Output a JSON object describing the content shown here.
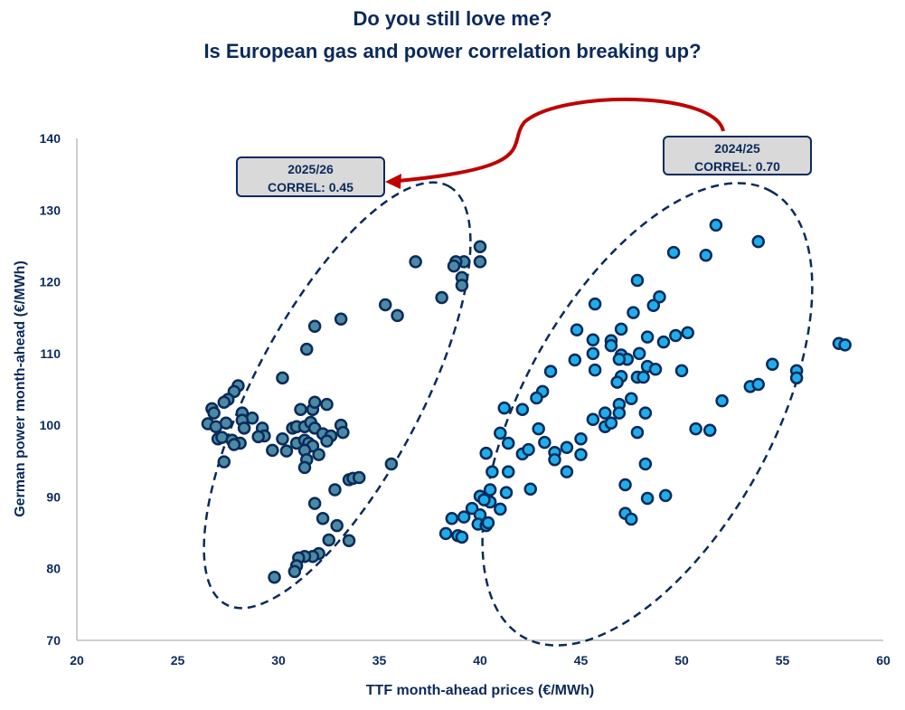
{
  "chart_data": {
    "type": "scatter",
    "title": "Do you still love me?",
    "subtitle": "Is European gas and power correlation breaking up?",
    "xlabel": "TTF month-ahead prices (€/MWh)",
    "ylabel": "German power month-ahead (€/MWh)",
    "xlim": [
      20,
      60
    ],
    "ylim": [
      70,
      140
    ],
    "xticks": [
      "20",
      "25",
      "30",
      "35",
      "40",
      "45",
      "50",
      "55",
      "60"
    ],
    "yticks": [
      "70",
      "80",
      "90",
      "100",
      "110",
      "120",
      "130",
      "140"
    ],
    "grid": false,
    "colors": {
      "series_2025_26": "#4a8ba3",
      "series_2024_25": "#1eaeea",
      "marker_edge": "#0b2a5b",
      "arrow": "#c00000",
      "text": "#0b2a5b"
    },
    "annotations": [
      {
        "line1": "2025/26",
        "line2": "CORREL: 0.45"
      },
      {
        "line1": "2024/25",
        "line2": "CORREL: 0.70"
      }
    ],
    "series": [
      {
        "points": [
          [
            40.0,
            124.9
          ],
          [
            40.0,
            122.8
          ],
          [
            39.2,
            122.8
          ],
          [
            38.8,
            122.8
          ],
          [
            38.7,
            122.2
          ],
          [
            36.8,
            122.8
          ],
          [
            39.1,
            120.6
          ],
          [
            39.1,
            119.5
          ],
          [
            38.1,
            117.8
          ],
          [
            35.3,
            116.8
          ],
          [
            35.9,
            115.3
          ],
          [
            33.1,
            114.8
          ],
          [
            31.8,
            113.8
          ],
          [
            31.4,
            110.6
          ],
          [
            30.2,
            106.6
          ],
          [
            28.0,
            105.5
          ],
          [
            27.8,
            104.7
          ],
          [
            27.5,
            103.6
          ],
          [
            27.3,
            103.2
          ],
          [
            26.7,
            102.3
          ],
          [
            26.8,
            101.7
          ],
          [
            26.5,
            100.2
          ],
          [
            26.9,
            99.8
          ],
          [
            27.4,
            100.3
          ],
          [
            28.2,
            101.7
          ],
          [
            28.7,
            101.0
          ],
          [
            28.2,
            100.7
          ],
          [
            28.3,
            99.6
          ],
          [
            29.2,
            99.6
          ],
          [
            29.3,
            98.5
          ],
          [
            29.0,
            98.4
          ],
          [
            27.0,
            98.1
          ],
          [
            27.2,
            98.3
          ],
          [
            27.7,
            97.9
          ],
          [
            28.1,
            97.5
          ],
          [
            27.8,
            97.3
          ],
          [
            27.3,
            94.9
          ],
          [
            29.7,
            96.5
          ],
          [
            30.2,
            98.1
          ],
          [
            30.4,
            96.4
          ],
          [
            31.1,
            102.2
          ],
          [
            31.7,
            102.2
          ],
          [
            31.8,
            103.2
          ],
          [
            32.4,
            102.9
          ],
          [
            30.7,
            99.6
          ],
          [
            30.9,
            99.8
          ],
          [
            31.3,
            99.8
          ],
          [
            31.6,
            100.4
          ],
          [
            31.8,
            99.6
          ],
          [
            32.2,
            98.8
          ],
          [
            32.6,
            98.5
          ],
          [
            30.9,
            97.5
          ],
          [
            31.3,
            97.9
          ],
          [
            31.5,
            97.5
          ],
          [
            31.7,
            97.1
          ],
          [
            32.4,
            97.8
          ],
          [
            31.3,
            96.5
          ],
          [
            32.0,
            95.9
          ],
          [
            31.4,
            95.2
          ],
          [
            31.3,
            94.1
          ],
          [
            33.1,
            100.0
          ],
          [
            33.2,
            99.0
          ],
          [
            35.6,
            94.6
          ],
          [
            33.5,
            92.4
          ],
          [
            33.7,
            92.6
          ],
          [
            34.0,
            92.7
          ],
          [
            32.8,
            91.0
          ],
          [
            31.8,
            89.1
          ],
          [
            32.2,
            87.0
          ],
          [
            32.9,
            86.0
          ],
          [
            32.5,
            84.0
          ],
          [
            33.5,
            83.9
          ],
          [
            32.0,
            82.1
          ],
          [
            31.7,
            81.7
          ],
          [
            31.3,
            81.7
          ],
          [
            31.0,
            81.5
          ],
          [
            30.9,
            80.4
          ],
          [
            30.8,
            79.6
          ],
          [
            29.8,
            78.8
          ]
        ]
      },
      {
        "points": [
          [
            51.7,
            127.9
          ],
          [
            53.8,
            125.6
          ],
          [
            49.6,
            124.1
          ],
          [
            51.2,
            123.7
          ],
          [
            47.8,
            120.2
          ],
          [
            48.9,
            117.9
          ],
          [
            48.6,
            116.7
          ],
          [
            45.7,
            116.9
          ],
          [
            47.6,
            115.7
          ],
          [
            44.8,
            113.3
          ],
          [
            47.0,
            113.4
          ],
          [
            45.6,
            111.9
          ],
          [
            46.5,
            111.8
          ],
          [
            46.5,
            111.1
          ],
          [
            48.3,
            112.3
          ],
          [
            49.1,
            111.6
          ],
          [
            49.7,
            112.5
          ],
          [
            50.3,
            112.9
          ],
          [
            57.8,
            111.4
          ],
          [
            58.1,
            111.2
          ],
          [
            45.6,
            110.0
          ],
          [
            44.7,
            109.1
          ],
          [
            47.0,
            109.8
          ],
          [
            47.3,
            109.2
          ],
          [
            46.9,
            109.2
          ],
          [
            47.9,
            110.0
          ],
          [
            45.7,
            107.7
          ],
          [
            48.3,
            108.2
          ],
          [
            48.7,
            107.8
          ],
          [
            50.0,
            107.6
          ],
          [
            54.5,
            108.5
          ],
          [
            55.7,
            107.6
          ],
          [
            55.7,
            106.6
          ],
          [
            53.4,
            105.4
          ],
          [
            53.8,
            105.7
          ],
          [
            43.5,
            107.5
          ],
          [
            47.0,
            106.8
          ],
          [
            46.8,
            106.0
          ],
          [
            47.8,
            106.7
          ],
          [
            48.1,
            106.7
          ],
          [
            52.0,
            103.4
          ],
          [
            43.1,
            104.7
          ],
          [
            42.8,
            103.8
          ],
          [
            47.5,
            103.7
          ],
          [
            46.9,
            102.9
          ],
          [
            41.2,
            102.4
          ],
          [
            42.1,
            102.2
          ],
          [
            46.2,
            101.7
          ],
          [
            46.9,
            101.7
          ],
          [
            48.2,
            101.7
          ],
          [
            45.6,
            100.8
          ],
          [
            46.2,
            99.8
          ],
          [
            46.5,
            100.3
          ],
          [
            47.8,
            99.0
          ],
          [
            50.7,
            99.5
          ],
          [
            51.4,
            99.3
          ],
          [
            41.0,
            98.9
          ],
          [
            42.9,
            99.5
          ],
          [
            41.4,
            97.5
          ],
          [
            43.2,
            97.6
          ],
          [
            40.3,
            96.1
          ],
          [
            42.1,
            96.0
          ],
          [
            42.4,
            96.6
          ],
          [
            43.7,
            96.2
          ],
          [
            43.7,
            95.2
          ],
          [
            44.3,
            96.9
          ],
          [
            45.0,
            98.1
          ],
          [
            45.0,
            95.9
          ],
          [
            44.3,
            93.5
          ],
          [
            40.6,
            93.5
          ],
          [
            41.4,
            93.5
          ],
          [
            48.2,
            94.6
          ],
          [
            42.5,
            91.1
          ],
          [
            47.2,
            91.7
          ],
          [
            40.5,
            91.0
          ],
          [
            41.3,
            90.6
          ],
          [
            40.0,
            90.1
          ],
          [
            40.5,
            89.3
          ],
          [
            40.2,
            89.6
          ],
          [
            41.0,
            88.3
          ],
          [
            48.3,
            89.8
          ],
          [
            49.2,
            90.2
          ],
          [
            39.6,
            88.4
          ],
          [
            39.2,
            87.2
          ],
          [
            38.6,
            87.0
          ],
          [
            40.0,
            87.5
          ],
          [
            39.9,
            86.2
          ],
          [
            40.3,
            86.0
          ],
          [
            40.4,
            86.4
          ],
          [
            47.2,
            87.7
          ],
          [
            47.5,
            86.9
          ],
          [
            38.3,
            84.9
          ],
          [
            38.9,
            84.6
          ],
          [
            39.1,
            84.4
          ]
        ]
      }
    ]
  }
}
